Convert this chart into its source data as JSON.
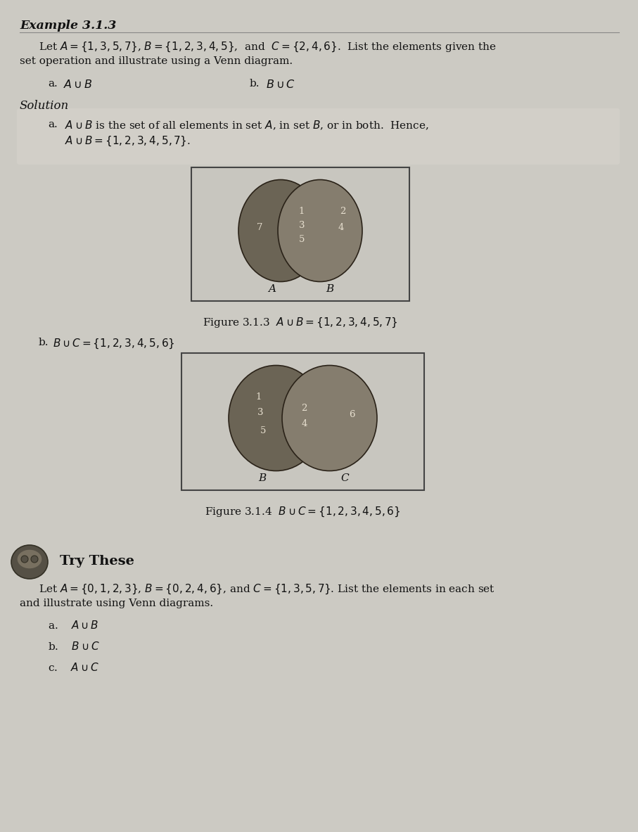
{
  "bg_color": "#cccac3",
  "box_bg": "#c5c3bb",
  "title": "Example 3.1.3",
  "venn_fill_dark": "#6b6455",
  "venn_fill_lighter": "#857d6e",
  "venn_edge_color": "#2a2218",
  "box_edge_color": "#444444",
  "text_color": "#111111",
  "fig1_caption": "Figure 3.1.3  $A\\cup B=\\{1,2,3,4,5,7\\}$",
  "fig2_caption": "Figure 3.1.4  $B\\cup C=\\{1,2,3,4,5,6\\}$",
  "try_items": [
    "a.    $A\\cup B$",
    "b.    $B\\cup C$",
    "c.    $A\\cup C$"
  ]
}
